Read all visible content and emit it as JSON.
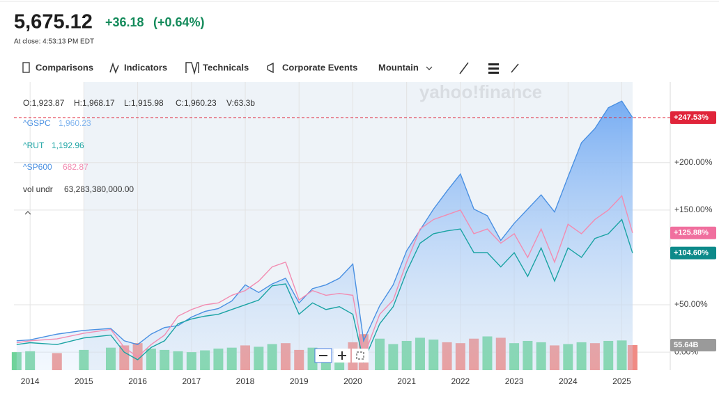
{
  "header": {
    "price": "5,675.12",
    "change": "+36.18",
    "change_pct": "(+0.64%)",
    "at_close": "At close: 4:53:13 PM EDT"
  },
  "toolbar": [
    "Comparisons",
    "Indicators",
    "Technicals",
    "Corporate Events",
    "Mountain"
  ],
  "watermark": "yahoo!finance",
  "readout": {
    "ohlc": [
      "O:1,923.87",
      "H:1,968.17",
      "L:1,915.98",
      "C:1,960.23",
      "V:63.3b"
    ],
    "series_values": [
      "1,960.23",
      "1,192.96",
      "682.87"
    ],
    "volume_name": "vol undr",
    "volume_value": "63,283,380,000.00"
  },
  "chart_data": {
    "type": "line",
    "x": [
      2013.75,
      2014,
      2014.5,
      2015,
      2015.5,
      2015.75,
      2016,
      2016.25,
      2016.5,
      2016.75,
      2017,
      2017.25,
      2017.5,
      2017.75,
      2018,
      2018.25,
      2018.5,
      2018.75,
      2019,
      2019.25,
      2019.5,
      2019.75,
      2020,
      2020.2,
      2020.5,
      2020.75,
      2021,
      2021.25,
      2021.5,
      2021.75,
      2022,
      2022.25,
      2022.5,
      2022.75,
      2023,
      2023.25,
      2023.5,
      2023.75,
      2024,
      2024.25,
      2024.5,
      2024.75,
      2025,
      2025.2
    ],
    "series": [
      {
        "name": "^GSPC",
        "color": "#4a90e2",
        "area": true,
        "values": [
          12,
          13,
          19,
          23,
          25,
          12,
          8,
          19,
          26,
          28,
          37,
          43,
          46,
          54,
          71,
          63,
          72,
          78,
          52,
          67,
          71,
          78,
          93,
          12,
          49,
          71,
          107,
          129,
          151,
          170,
          188,
          151,
          144,
          118,
          136,
          151,
          166,
          148,
          185,
          221,
          236,
          258,
          265,
          247.53
        ],
        "value_labels": [
          null,
          null,
          null,
          null,
          null,
          null,
          null,
          null,
          null,
          null,
          null,
          null,
          null,
          null,
          null,
          null,
          null,
          null,
          null,
          null,
          null,
          null,
          null,
          null,
          null,
          null,
          null,
          null,
          null,
          null,
          null,
          null,
          null,
          null,
          null,
          null,
          null,
          null,
          null,
          null,
          null,
          null,
          null,
          "+247.53%"
        ],
        "label_color": "#e0243a"
      },
      {
        "name": "^RUT",
        "color": "#1aa3a3",
        "values": [
          8,
          10,
          8,
          15,
          18,
          0,
          -8,
          5,
          12,
          30,
          35,
          38,
          40,
          45,
          50,
          55,
          70,
          72,
          40,
          52,
          45,
          48,
          40,
          -10,
          30,
          48,
          85,
          115,
          125,
          128,
          130,
          105,
          105,
          90,
          105,
          80,
          110,
          75,
          110,
          100,
          120,
          125,
          140,
          104.6
        ],
        "value_labels": [
          null,
          null,
          null,
          null,
          null,
          null,
          null,
          null,
          null,
          null,
          null,
          null,
          null,
          null,
          null,
          null,
          null,
          null,
          null,
          null,
          null,
          null,
          null,
          null,
          null,
          null,
          null,
          null,
          null,
          null,
          null,
          null,
          null,
          null,
          null,
          null,
          null,
          null,
          null,
          null,
          null,
          null,
          null,
          "+104.60%"
        ],
        "label_color": "#0d8a8a"
      },
      {
        "name": "^SP600",
        "color": "#f28cb1",
        "values": [
          10,
          12,
          14,
          20,
          24,
          5,
          -5,
          8,
          18,
          38,
          45,
          50,
          52,
          60,
          65,
          75,
          90,
          95,
          55,
          65,
          60,
          62,
          60,
          -5,
          40,
          55,
          95,
          130,
          140,
          145,
          150,
          125,
          130,
          115,
          125,
          100,
          130,
          95,
          135,
          125,
          140,
          150,
          165,
          125.88
        ],
        "value_labels": [
          null,
          null,
          null,
          null,
          null,
          null,
          null,
          null,
          null,
          null,
          null,
          null,
          null,
          null,
          null,
          null,
          null,
          null,
          null,
          null,
          null,
          null,
          null,
          null,
          null,
          null,
          null,
          null,
          null,
          null,
          null,
          null,
          null,
          null,
          null,
          null,
          null,
          null,
          null,
          null,
          null,
          null,
          null,
          "+125.88%"
        ],
        "label_color": "#f06f9e"
      },
      {
        "name": "Volume",
        "axis": "y2",
        "style": "bar",
        "values": [
          40,
          42,
          38,
          45,
          50,
          55,
          60,
          48,
          45,
          42,
          40,
          44,
          48,
          50,
          55,
          52,
          58,
          60,
          45,
          50,
          48,
          46,
          62,
          80,
          70,
          58,
          65,
          72,
          68,
          62,
          60,
          70,
          75,
          72,
          60,
          65,
          62,
          55,
          58,
          62,
          60,
          65,
          66,
          55.64
        ],
        "value_labels": [
          null,
          null,
          null,
          null,
          null,
          null,
          null,
          null,
          null,
          null,
          null,
          null,
          null,
          null,
          null,
          null,
          null,
          null,
          null,
          null,
          null,
          null,
          null,
          null,
          null,
          null,
          null,
          null,
          null,
          null,
          null,
          null,
          null,
          null,
          null,
          null,
          null,
          null,
          null,
          null,
          null,
          null,
          null,
          "55.64B"
        ],
        "label_color": "#9a9a9a",
        "colors": [
          "#6fd39a",
          "#6fd39a",
          "#f08a84",
          "#6fd39a",
          "#6fd39a",
          "#f08a84",
          "#f08a84",
          "#6fd39a",
          "#6fd39a",
          "#6fd39a",
          "#6fd39a",
          "#6fd39a",
          "#6fd39a",
          "#6fd39a",
          "#f08a84",
          "#6fd39a",
          "#6fd39a",
          "#f08a84",
          "#f08a84",
          "#6fd39a",
          "#6fd39a",
          "#6fd39a",
          "#f08a84",
          "#f08a84",
          "#6fd39a",
          "#6fd39a",
          "#6fd39a",
          "#6fd39a",
          "#6fd39a",
          "#f08a84",
          "#f08a84",
          "#f08a84",
          "#6fd39a",
          "#f08a84",
          "#6fd39a",
          "#6fd39a",
          "#6fd39a",
          "#f08a84",
          "#6fd39a",
          "#6fd39a",
          "#f08a84",
          "#6fd39a",
          "#6fd39a",
          "#f08a84"
        ]
      }
    ],
    "xlim": [
      2013.7,
      2025.9
    ],
    "xticks": [
      2014,
      2015,
      2016,
      2017,
      2018,
      2019,
      2020,
      2021,
      2022,
      2023,
      2024,
      2025
    ],
    "ylim": [
      -19,
      285
    ],
    "yticks": [
      {
        "value": 0,
        "label": "0.00%"
      },
      {
        "value": 50,
        "label": "+50.00%"
      },
      {
        "value": 150,
        "label": "+150.00%"
      },
      {
        "value": 200,
        "label": "+200.00%"
      }
    ],
    "y2lim": [
      0,
      640
    ],
    "grid": true
  }
}
